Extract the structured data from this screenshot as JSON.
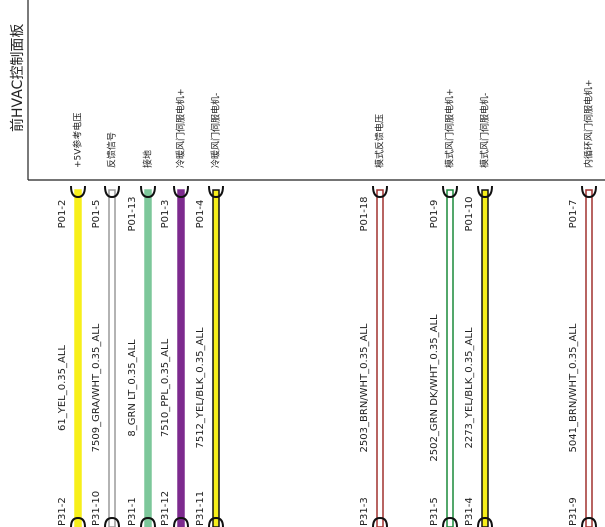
{
  "component": "前HVAC控制面板",
  "wires": [
    {
      "pin_top": "P01-2",
      "signal": "+5V参考电压",
      "label": "61_YEL_0.35_ALL",
      "pin_bottom": "P31-2",
      "color": "#f7ef1a",
      "border": "#f7ef1a"
    },
    {
      "pin_top": "P01-5",
      "signal": "反馈信号",
      "label": "7509_GRA/WHT_0.35_ALL",
      "pin_bottom": "P31-10",
      "color": "#ffffff",
      "border": "#9a9a9a"
    },
    {
      "pin_top": "P01-13",
      "signal": "接地",
      "label": "8_GRN LT_0.35_ALL",
      "pin_bottom": "P31-1",
      "color": "#7dc79a",
      "border": "#7dc79a"
    },
    {
      "pin_top": "P01-3",
      "signal": "冷暖风门伺服电机+",
      "label": "7510_PPL_0.35_ALL",
      "pin_bottom": "P31-12",
      "color": "#7d2a8e",
      "border": "#7d2a8e"
    },
    {
      "pin_top": "P01-4",
      "signal": "冷暖风门伺服电机-",
      "label": "7512_YEL/BLK_0.35_ALL",
      "pin_bottom": "P31-11",
      "color": "#f7ef1a",
      "border": "#111111"
    },
    {
      "pin_top": "P01-18",
      "signal": "模式反馈电压",
      "label": "2503_BRN/WHT_0.35_ALL",
      "pin_bottom": "P31-3",
      "color": "#ffffff",
      "border": "#a0302e"
    },
    {
      "pin_top": "P01-9",
      "signal": "模式风门伺服电机+",
      "label": "2502_GRN DK/WHT_0.35_ALL",
      "pin_bottom": "P31-5",
      "color": "#ffffff",
      "border": "#1a8a3a"
    },
    {
      "pin_top": "P01-10",
      "signal": "模式风门伺服电机-",
      "label": "2273_YEL/BLK_0.35_ALL",
      "pin_bottom": "P31-4",
      "color": "#f7ef1a",
      "border": "#111111"
    },
    {
      "pin_top": "P01-7",
      "signal": "内循环风门伺服电机+",
      "label": "5041_BRN/WHT_0.35_ALL",
      "pin_bottom": "P31-9",
      "color": "#ffffff",
      "border": "#a0302e"
    }
  ]
}
